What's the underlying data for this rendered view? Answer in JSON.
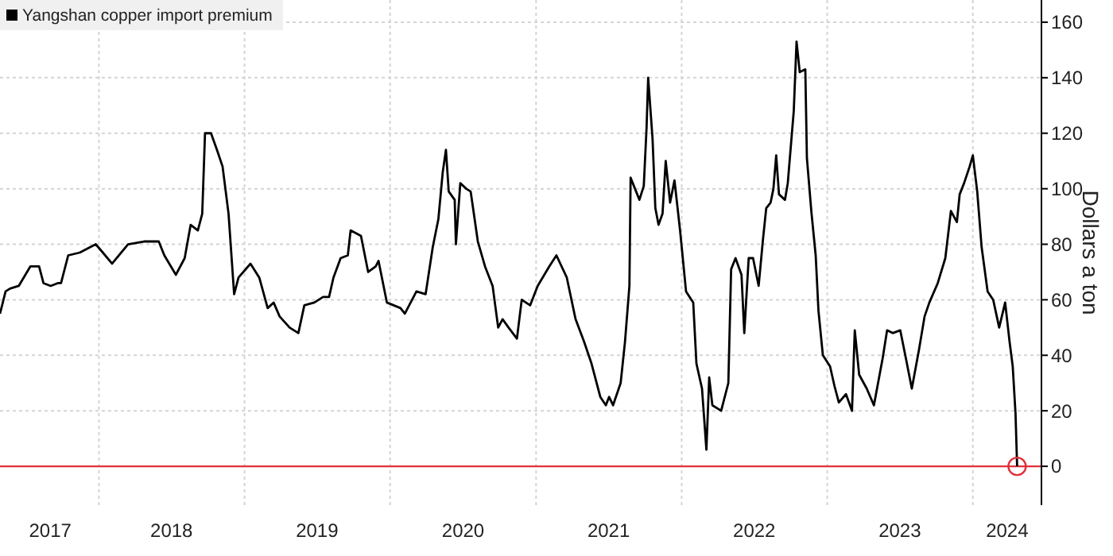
{
  "chart_data": {
    "type": "line",
    "ylabel": "Dollars a ton",
    "legend": "top left",
    "grid": true,
    "line_style": "solid",
    "marker": "none",
    "xlim": [
      "2017-04-28",
      "2024-06-21"
    ],
    "ylim": [
      -14,
      168
    ],
    "yticks": [
      0,
      20,
      40,
      60,
      80,
      100,
      120,
      140,
      160
    ],
    "xticks": [
      {
        "value": "2017-09-01",
        "label": "2017"
      },
      {
        "value": "2018-01-01",
        "label": null
      },
      {
        "value": "2018-07-02",
        "label": "2018"
      },
      {
        "value": "2019-01-01",
        "label": null
      },
      {
        "value": "2019-07-02",
        "label": "2019"
      },
      {
        "value": "2020-01-01",
        "label": null
      },
      {
        "value": "2020-07-02",
        "label": "2020"
      },
      {
        "value": "2021-01-01",
        "label": null
      },
      {
        "value": "2021-07-02",
        "label": "2021"
      },
      {
        "value": "2022-01-01",
        "label": null
      },
      {
        "value": "2022-07-02",
        "label": "2022"
      },
      {
        "value": "2023-01-01",
        "label": null
      },
      {
        "value": "2023-07-02",
        "label": "2023"
      },
      {
        "value": "2024-01-01",
        "label": null
      },
      {
        "value": "2024-03-27",
        "label": "2024"
      }
    ],
    "ref_lines": [
      {
        "axis": "y",
        "value": 0,
        "label": null,
        "color": "#e0313a"
      }
    ],
    "series": [
      {
        "name": "Yangshan copper import premium",
        "color": "#000000",
        "x": [
          "2017-04-28",
          "2017-05-12",
          "2017-05-23",
          "2017-06-14",
          "2017-07-13",
          "2017-08-04",
          "2017-08-15",
          "2017-09-02",
          "2017-09-20",
          "2017-09-28",
          "2017-10-16",
          "2017-11-14",
          "2017-12-24",
          "2018-01-05",
          "2018-02-03",
          "2018-03-15",
          "2018-04-24",
          "2018-05-31",
          "2018-06-14",
          "2018-07-13",
          "2018-08-04",
          "2018-08-19",
          "2018-09-06",
          "2018-09-17",
          "2018-09-24",
          "2018-10-09",
          "2018-10-24",
          "2018-11-07",
          "2018-11-22",
          "2018-12-06",
          "2018-12-17",
          "2019-01-16",
          "2019-02-07",
          "2019-02-28",
          "2019-03-15",
          "2019-03-30",
          "2019-04-24",
          "2019-05-16",
          "2019-05-31",
          "2019-06-25",
          "2019-07-17",
          "2019-08-01",
          "2019-08-12",
          "2019-08-30",
          "2019-09-17",
          "2019-09-24",
          "2019-10-20",
          "2019-11-07",
          "2019-11-26",
          "2019-12-03",
          "2019-12-24",
          "2020-01-27",
          "2020-02-07",
          "2020-03-07",
          "2020-03-30",
          "2020-04-17",
          "2020-05-01",
          "2020-05-12",
          "2020-05-20",
          "2020-05-27",
          "2020-06-11",
          "2020-06-14",
          "2020-06-25",
          "2020-07-10",
          "2020-07-21",
          "2020-08-08",
          "2020-08-26",
          "2020-09-14",
          "2020-09-28",
          "2020-10-09",
          "2020-10-24",
          "2020-11-14",
          "2020-11-26",
          "2020-12-17",
          "2021-01-05",
          "2021-02-03",
          "2021-02-21",
          "2021-03-19",
          "2021-04-10",
          "2021-05-01",
          "2021-05-20",
          "2021-06-11",
          "2021-06-25",
          "2021-07-03",
          "2021-07-13",
          "2021-08-01",
          "2021-08-12",
          "2021-08-23",
          "2021-08-26",
          "2021-09-06",
          "2021-09-17",
          "2021-09-28",
          "2021-10-05",
          "2021-10-09",
          "2021-10-20",
          "2021-10-27",
          "2021-11-04",
          "2021-11-14",
          "2021-11-22",
          "2021-12-03",
          "2021-12-14",
          "2021-12-28",
          "2022-01-12",
          "2022-01-30",
          "2022-02-07",
          "2022-02-21",
          "2022-03-04",
          "2022-03-11",
          "2022-03-19",
          "2022-04-10",
          "2022-04-28",
          "2022-05-05",
          "2022-05-16",
          "2022-05-31",
          "2022-06-07",
          "2022-06-18",
          "2022-06-29",
          "2022-07-13",
          "2022-07-24",
          "2022-08-01",
          "2022-08-12",
          "2022-08-19",
          "2022-08-26",
          "2022-09-02",
          "2022-09-17",
          "2022-09-24",
          "2022-10-09",
          "2022-10-16",
          "2022-10-24",
          "2022-11-07",
          "2022-11-11",
          "2022-11-22",
          "2022-12-03",
          "2022-12-10",
          "2022-12-21",
          "2023-01-08",
          "2023-01-19",
          "2023-01-30",
          "2023-02-17",
          "2023-03-04",
          "2023-03-11",
          "2023-03-22",
          "2023-04-10",
          "2023-04-28",
          "2023-05-20",
          "2023-05-31",
          "2023-06-14",
          "2023-07-03",
          "2023-07-17",
          "2023-08-01",
          "2023-08-19",
          "2023-09-02",
          "2023-09-14",
          "2023-10-05",
          "2023-10-24",
          "2023-11-07",
          "2023-11-22",
          "2023-11-29",
          "2023-12-10",
          "2023-12-24",
          "2024-01-01",
          "2024-01-12",
          "2024-01-23",
          "2024-02-07",
          "2024-02-21",
          "2024-03-07",
          "2024-03-22",
          "2024-04-02",
          "2024-04-10",
          "2024-04-17",
          "2024-04-21"
        ],
        "values": [
          55,
          63,
          64,
          65,
          72,
          72,
          66,
          65,
          66,
          66,
          76,
          77,
          80,
          78,
          73,
          80,
          81,
          81,
          76,
          69,
          75,
          87,
          85,
          91,
          120,
          120,
          114,
          108,
          91,
          62,
          68,
          73,
          68,
          57,
          59,
          54,
          50,
          48,
          58,
          59,
          61,
          61,
          68,
          75,
          76,
          85,
          83,
          70,
          72,
          74,
          59,
          57,
          55,
          63,
          62,
          79,
          89,
          106,
          114,
          99,
          96,
          80,
          102,
          100,
          99,
          81,
          72,
          65,
          50,
          53,
          50,
          46,
          60,
          58,
          65,
          72,
          76,
          68,
          53,
          45,
          37,
          25,
          22,
          25,
          22,
          30,
          45,
          65,
          104,
          100,
          96,
          101,
          122,
          140,
          118,
          93,
          87,
          91,
          110,
          95,
          103,
          85,
          63,
          59,
          37,
          28,
          6,
          32,
          22,
          20,
          30,
          71,
          75,
          69,
          48,
          75,
          75,
          65,
          82,
          93,
          95,
          100,
          112,
          98,
          96,
          102,
          128,
          153,
          142,
          143,
          111,
          92,
          76,
          56,
          40,
          36,
          29,
          23,
          26,
          20,
          49,
          33,
          28,
          22,
          39,
          49,
          48,
          49,
          39,
          28,
          42,
          54,
          59,
          66,
          75,
          92,
          88,
          98,
          102,
          108,
          112,
          99,
          79,
          63,
          60,
          50,
          59,
          45,
          36,
          19,
          0
        ]
      }
    ]
  }
}
